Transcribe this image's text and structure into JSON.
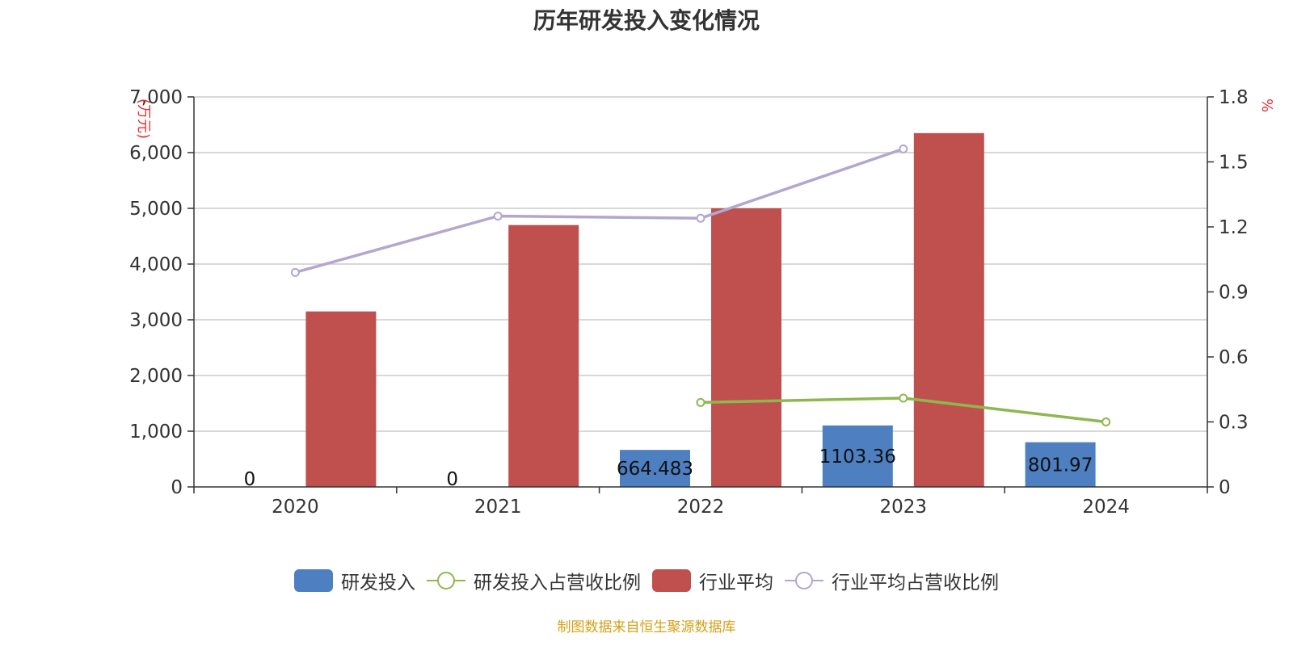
{
  "title": "历年研发投入变化情况",
  "source": "制图数据来自恒生聚源数据库",
  "colors": {
    "rd": "#4e7fc1",
    "industry": "#c0504d",
    "rd_ratio": "#8fb74f",
    "industry_ratio": "#b3a6cf",
    "grid": "#cccccc",
    "axis": "#333333",
    "unit": "#e03030"
  },
  "chart_data": {
    "type": "bar",
    "categories": [
      "2020",
      "2021",
      "2022",
      "2023",
      "2024"
    ],
    "y_left": {
      "label": "(万元)",
      "ylim": [
        0,
        7000
      ],
      "ticks": [
        0,
        1000,
        2000,
        3000,
        4000,
        5000,
        6000,
        7000
      ],
      "tick_labels": [
        "0",
        "1,000",
        "2,000",
        "3,000",
        "4,000",
        "5,000",
        "6,000",
        "7,000"
      ]
    },
    "y_right": {
      "label": "%",
      "ylim": [
        0,
        1.8
      ],
      "ticks": [
        0,
        0.3,
        0.6,
        0.9,
        1.2,
        1.5,
        1.8
      ],
      "tick_labels": [
        "0",
        "0.3",
        "0.6",
        "0.9",
        "1.2",
        "1.5",
        "1.8"
      ]
    },
    "grid": true,
    "legend_position": "bottom",
    "series": [
      {
        "name": "研发投入",
        "type": "bar",
        "axis": "left",
        "values": [
          0,
          0,
          664.483,
          1103.36,
          801.97
        ],
        "data_labels": [
          "0",
          "0",
          "664.483",
          "1103.36",
          "801.97"
        ]
      },
      {
        "name": "研发投入占营收比例",
        "type": "line",
        "axis": "right",
        "values": [
          null,
          null,
          0.39,
          0.41,
          0.3
        ]
      },
      {
        "name": "行业平均",
        "type": "bar",
        "axis": "left",
        "values": [
          3150,
          4700,
          5000,
          6350,
          null
        ]
      },
      {
        "name": "行业平均占营收比例",
        "type": "line",
        "axis": "right",
        "values": [
          0.99,
          1.25,
          1.24,
          1.56,
          null
        ]
      }
    ]
  }
}
